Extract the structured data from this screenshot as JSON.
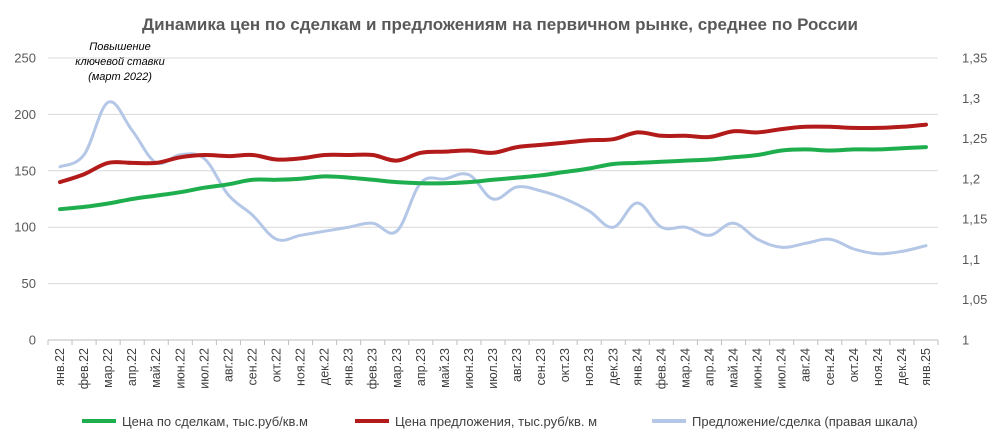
{
  "chart_data": {
    "type": "line",
    "title": "Динамика цен по сделкам и предложениям на первичном рынке, среднее по России",
    "annotation": [
      "Повышение",
      "ключевой ставки",
      "(март 2022)"
    ],
    "xlabel": "",
    "ylabel": "",
    "ylim": [
      0,
      250
    ],
    "y2lim": [
      1,
      1.35
    ],
    "yticks": [
      "0",
      "50",
      "100",
      "150",
      "200",
      "250"
    ],
    "y2ticks": [
      "1",
      "1,05",
      "1,1",
      "1,15",
      "1,2",
      "1,25",
      "1,3",
      "1,35"
    ],
    "grid": true,
    "legend_position": "bottom",
    "categories": [
      "янв.22",
      "фев.22",
      "мар.22",
      "апр.22",
      "май.22",
      "июн.22",
      "июл.22",
      "авг.22",
      "сен.22",
      "окт.22",
      "ноя.22",
      "дек.22",
      "янв.23",
      "фев.23",
      "мар.23",
      "апр.23",
      "май.23",
      "июн.23",
      "июл.23",
      "авг.23",
      "сен.23",
      "окт.23",
      "ноя.23",
      "дек.23",
      "янв.24",
      "фев.24",
      "мар.24",
      "апр.24",
      "май.24",
      "июн.24",
      "июл.24",
      "авг.24",
      "сен.24",
      "окт.24",
      "ноя.24",
      "дек.24",
      "янв.25"
    ],
    "series": [
      {
        "name": "Цена по сделкам, тыс.руб/кв.м",
        "color": "#1fae4e",
        "axis": "left",
        "values": [
          116,
          118,
          121,
          125,
          128,
          131,
          135,
          138,
          142,
          142,
          143,
          145,
          144,
          142,
          140,
          139,
          139,
          140,
          142,
          144,
          146,
          149,
          152,
          156,
          157,
          158,
          159,
          160,
          162,
          164,
          168,
          169,
          168,
          169,
          169,
          170,
          171
        ]
      },
      {
        "name": "Цена предложения, тыс.руб/кв. м",
        "color": "#b31b1b",
        "axis": "left",
        "values": [
          140,
          147,
          157,
          157,
          157,
          162,
          164,
          163,
          164,
          160,
          161,
          164,
          164,
          164,
          159,
          166,
          167,
          168,
          166,
          171,
          173,
          175,
          177,
          178,
          184,
          181,
          181,
          180,
          185,
          184,
          187,
          189,
          189,
          188,
          188,
          189,
          191
        ]
      },
      {
        "name": "Предложение/сделка (правая шкала)",
        "color": "#b4c7e7",
        "axis": "right",
        "values": [
          1.215,
          1.23,
          1.295,
          1.26,
          1.22,
          1.23,
          1.225,
          1.18,
          1.155,
          1.125,
          1.13,
          1.135,
          1.14,
          1.145,
          1.135,
          1.195,
          1.2,
          1.205,
          1.175,
          1.19,
          1.185,
          1.175,
          1.16,
          1.14,
          1.17,
          1.14,
          1.14,
          1.13,
          1.145,
          1.125,
          1.115,
          1.12,
          1.125,
          1.113,
          1.107,
          1.11,
          1.117
        ]
      }
    ]
  }
}
